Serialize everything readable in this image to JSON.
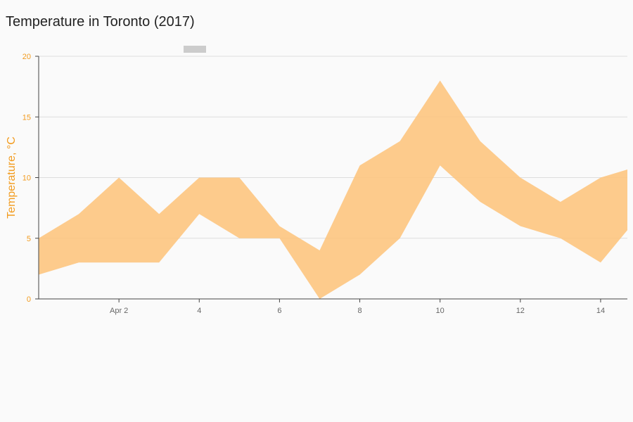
{
  "chart_data": {
    "type": "area",
    "title": "Temperature in Toronto (2017)",
    "xlabel": "",
    "ylabel": "Temperature, °C",
    "ylim": [
      0,
      20
    ],
    "yticks": [
      0,
      5,
      10,
      15,
      20
    ],
    "x_range": [
      "2017-03-31",
      "2017-04-14T16:00"
    ],
    "xticks": [
      {
        "date": "2017-04-02",
        "label": "Apr 2"
      },
      {
        "date": "2017-04-04",
        "label": "4"
      },
      {
        "date": "2017-04-06",
        "label": "6"
      },
      {
        "date": "2017-04-08",
        "label": "8"
      },
      {
        "date": "2017-04-10",
        "label": "10"
      },
      {
        "date": "2017-04-12",
        "label": "12"
      },
      {
        "date": "2017-04-14",
        "label": "14"
      }
    ],
    "grid": true,
    "series": [
      {
        "type": "range",
        "color": "#fdc580",
        "x": [
          "2017-03-31",
          "2017-04-01",
          "2017-04-02",
          "2017-04-03",
          "2017-04-04",
          "2017-04-05",
          "2017-04-06",
          "2017-04-07",
          "2017-04-08",
          "2017-04-09",
          "2017-04-10",
          "2017-04-11",
          "2017-04-12",
          "2017-04-13",
          "2017-04-14",
          "2017-04-15"
        ],
        "low": [
          2,
          3,
          3,
          3,
          7,
          5,
          5,
          0,
          2,
          5,
          11,
          8,
          6,
          5,
          3,
          7
        ],
        "high": [
          5,
          7,
          10,
          7,
          10,
          10,
          6,
          4,
          11,
          13,
          18,
          13,
          10,
          8,
          10,
          11
        ]
      }
    ],
    "legend": {
      "placement": "top-left",
      "swatch_color": "#cccccc"
    }
  },
  "colors": {
    "background": "#fafafa",
    "axis_label": "#f29b1e",
    "tick_text": "#666666",
    "grid": "#dddddd",
    "axis_line": "#444444"
  }
}
